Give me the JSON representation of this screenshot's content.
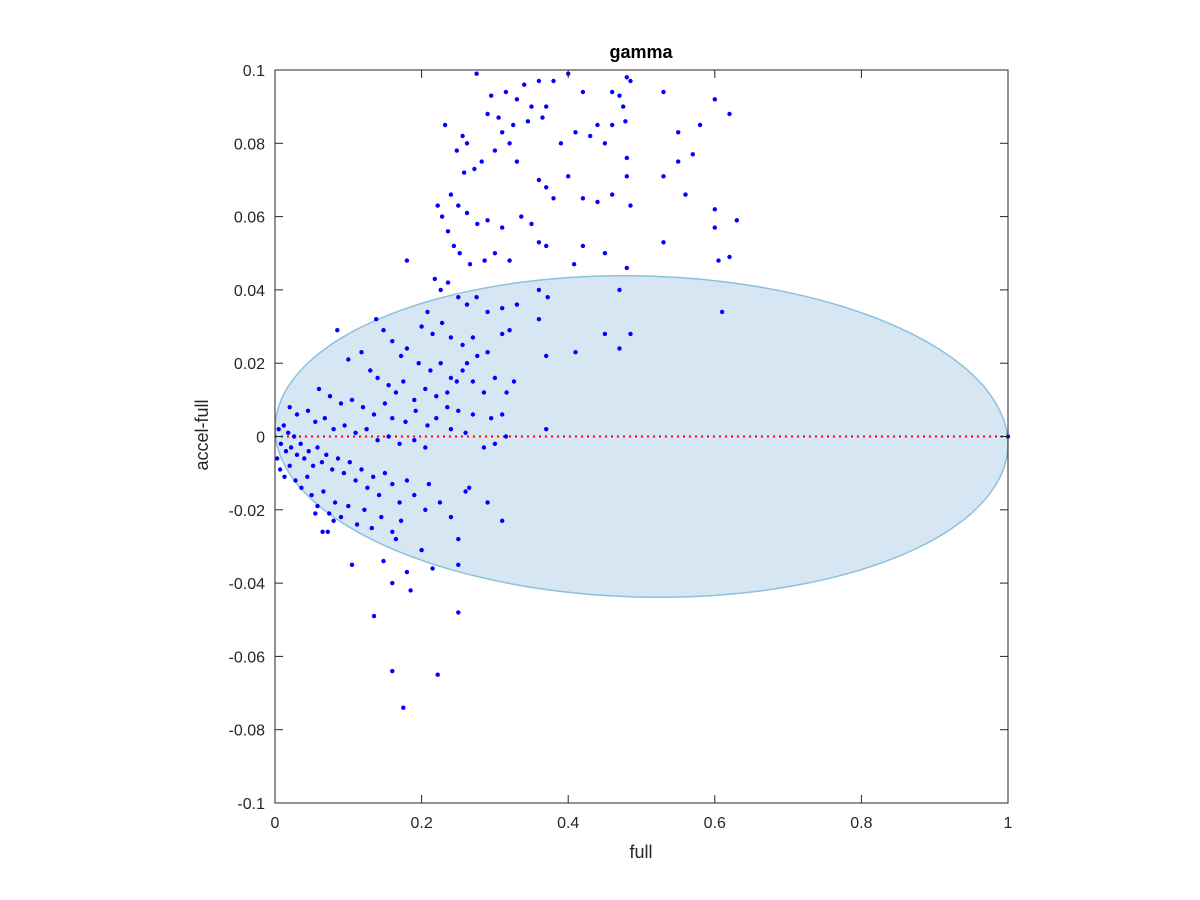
{
  "chart_data": {
    "type": "scatter",
    "title": "gamma",
    "xlabel": "full",
    "ylabel": "accel-full",
    "xlim": [
      0,
      1
    ],
    "ylim": [
      -0.1,
      0.1
    ],
    "xticks": [
      0,
      0.2,
      0.4,
      0.6,
      0.8,
      1
    ],
    "xtick_labels": [
      "0",
      "0.2",
      "0.4",
      "0.6",
      "0.8",
      "1"
    ],
    "yticks": [
      -0.1,
      -0.08,
      -0.06,
      -0.04,
      -0.02,
      0,
      0.02,
      0.04,
      0.06,
      0.08,
      0.1
    ],
    "ytick_labels": [
      "-0.1",
      "-0.08",
      "-0.06",
      "-0.04",
      "-0.02",
      "0",
      "0.02",
      "0.04",
      "0.06",
      "0.08",
      "0.1"
    ],
    "grid": false,
    "colors": {
      "points": "#0000ff",
      "ellipse_fill": "#d6e6f3",
      "ellipse_stroke": "#8ec0de",
      "reference_line": "#ff0000",
      "axes": "#262626"
    },
    "ellipse": {
      "center": [
        0.5,
        0.0
      ],
      "semi_axis_x": 0.5,
      "semi_axis_y": 0.0438,
      "rotation_deg": -1.5
    },
    "reference_line": {
      "y": 0,
      "x_range": [
        0,
        1
      ],
      "style": "dotted"
    },
    "series": [
      {
        "points": [
          [
            0.275,
            0.099
          ],
          [
            0.295,
            0.093
          ],
          [
            0.315,
            0.094
          ],
          [
            0.34,
            0.096
          ],
          [
            0.36,
            0.097
          ],
          [
            0.38,
            0.097
          ],
          [
            0.4,
            0.099
          ],
          [
            0.42,
            0.094
          ],
          [
            0.46,
            0.094
          ],
          [
            0.48,
            0.098
          ],
          [
            0.485,
            0.097
          ],
          [
            0.47,
            0.093
          ],
          [
            0.475,
            0.09
          ],
          [
            0.33,
            0.092
          ],
          [
            0.35,
            0.09
          ],
          [
            0.37,
            0.09
          ],
          [
            0.29,
            0.088
          ],
          [
            0.305,
            0.087
          ],
          [
            0.31,
            0.083
          ],
          [
            0.325,
            0.085
          ],
          [
            0.345,
            0.086
          ],
          [
            0.365,
            0.087
          ],
          [
            0.39,
            0.08
          ],
          [
            0.41,
            0.083
          ],
          [
            0.43,
            0.082
          ],
          [
            0.45,
            0.08
          ],
          [
            0.46,
            0.085
          ],
          [
            0.478,
            0.086
          ],
          [
            0.48,
            0.076
          ],
          [
            0.232,
            0.085
          ],
          [
            0.256,
            0.082
          ],
          [
            0.262,
            0.08
          ],
          [
            0.248,
            0.078
          ],
          [
            0.258,
            0.072
          ],
          [
            0.272,
            0.073
          ],
          [
            0.282,
            0.075
          ],
          [
            0.3,
            0.078
          ],
          [
            0.32,
            0.08
          ],
          [
            0.33,
            0.075
          ],
          [
            0.36,
            0.07
          ],
          [
            0.37,
            0.068
          ],
          [
            0.38,
            0.065
          ],
          [
            0.4,
            0.071
          ],
          [
            0.42,
            0.065
          ],
          [
            0.44,
            0.064
          ],
          [
            0.46,
            0.066
          ],
          [
            0.48,
            0.071
          ],
          [
            0.485,
            0.063
          ],
          [
            0.24,
            0.066
          ],
          [
            0.25,
            0.063
          ],
          [
            0.262,
            0.061
          ],
          [
            0.276,
            0.058
          ],
          [
            0.29,
            0.059
          ],
          [
            0.31,
            0.057
          ],
          [
            0.336,
            0.06
          ],
          [
            0.35,
            0.058
          ],
          [
            0.36,
            0.053
          ],
          [
            0.37,
            0.052
          ],
          [
            0.42,
            0.052
          ],
          [
            0.222,
            0.063
          ],
          [
            0.228,
            0.06
          ],
          [
            0.236,
            0.056
          ],
          [
            0.244,
            0.052
          ],
          [
            0.252,
            0.05
          ],
          [
            0.266,
            0.047
          ],
          [
            0.286,
            0.048
          ],
          [
            0.3,
            0.05
          ],
          [
            0.32,
            0.048
          ],
          [
            0.408,
            0.047
          ],
          [
            0.48,
            0.046
          ],
          [
            0.18,
            0.048
          ],
          [
            0.218,
            0.043
          ],
          [
            0.226,
            0.04
          ],
          [
            0.236,
            0.042
          ],
          [
            0.25,
            0.038
          ],
          [
            0.262,
            0.036
          ],
          [
            0.275,
            0.038
          ],
          [
            0.29,
            0.034
          ],
          [
            0.31,
            0.035
          ],
          [
            0.33,
            0.036
          ],
          [
            0.36,
            0.04
          ],
          [
            0.372,
            0.038
          ],
          [
            0.208,
            0.034
          ],
          [
            0.2,
            0.03
          ],
          [
            0.215,
            0.028
          ],
          [
            0.228,
            0.031
          ],
          [
            0.24,
            0.027
          ],
          [
            0.256,
            0.025
          ],
          [
            0.27,
            0.027
          ],
          [
            0.29,
            0.023
          ],
          [
            0.31,
            0.028
          ],
          [
            0.32,
            0.029
          ],
          [
            0.36,
            0.032
          ],
          [
            0.37,
            0.022
          ],
          [
            0.45,
            0.028
          ],
          [
            0.47,
            0.024
          ],
          [
            0.485,
            0.028
          ],
          [
            0.41,
            0.023
          ],
          [
            0.138,
            0.032
          ],
          [
            0.148,
            0.029
          ],
          [
            0.16,
            0.026
          ],
          [
            0.172,
            0.022
          ],
          [
            0.18,
            0.024
          ],
          [
            0.196,
            0.02
          ],
          [
            0.212,
            0.018
          ],
          [
            0.226,
            0.02
          ],
          [
            0.24,
            0.016
          ],
          [
            0.256,
            0.018
          ],
          [
            0.27,
            0.015
          ],
          [
            0.085,
            0.029
          ],
          [
            0.1,
            0.021
          ],
          [
            0.118,
            0.023
          ],
          [
            0.13,
            0.018
          ],
          [
            0.14,
            0.016
          ],
          [
            0.155,
            0.014
          ],
          [
            0.165,
            0.012
          ],
          [
            0.175,
            0.015
          ],
          [
            0.19,
            0.01
          ],
          [
            0.205,
            0.013
          ],
          [
            0.22,
            0.011
          ],
          [
            0.235,
            0.008
          ],
          [
            0.25,
            0.007
          ],
          [
            0.27,
            0.006
          ],
          [
            0.295,
            0.005
          ],
          [
            0.31,
            0.006
          ],
          [
            0.06,
            0.013
          ],
          [
            0.075,
            0.011
          ],
          [
            0.09,
            0.009
          ],
          [
            0.105,
            0.01
          ],
          [
            0.12,
            0.008
          ],
          [
            0.135,
            0.006
          ],
          [
            0.15,
            0.009
          ],
          [
            0.16,
            0.005
          ],
          [
            0.178,
            0.004
          ],
          [
            0.192,
            0.007
          ],
          [
            0.208,
            0.003
          ],
          [
            0.22,
            0.005
          ],
          [
            0.24,
            0.002
          ],
          [
            0.26,
            0.001
          ],
          [
            0.37,
            0.002
          ],
          [
            0.02,
            0.008
          ],
          [
            0.03,
            0.006
          ],
          [
            0.045,
            0.007
          ],
          [
            0.055,
            0.004
          ],
          [
            0.068,
            0.005
          ],
          [
            0.08,
            0.002
          ],
          [
            0.095,
            0.003
          ],
          [
            0.11,
            0.001
          ],
          [
            0.125,
            0.002
          ],
          [
            0.14,
            -0.001
          ],
          [
            0.155,
            0.0
          ],
          [
            0.17,
            -0.002
          ],
          [
            0.19,
            -0.001
          ],
          [
            0.205,
            -0.003
          ],
          [
            0.005,
            0.002
          ],
          [
            0.008,
            -0.002
          ],
          [
            0.012,
            0.003
          ],
          [
            0.015,
            -0.004
          ],
          [
            0.018,
            0.001
          ],
          [
            0.022,
            -0.003
          ],
          [
            0.026,
            0.0
          ],
          [
            0.03,
            -0.005
          ],
          [
            0.035,
            -0.002
          ],
          [
            0.04,
            -0.006
          ],
          [
            0.046,
            -0.004
          ],
          [
            0.052,
            -0.008
          ],
          [
            0.058,
            -0.003
          ],
          [
            0.064,
            -0.007
          ],
          [
            0.07,
            -0.005
          ],
          [
            0.078,
            -0.009
          ],
          [
            0.086,
            -0.006
          ],
          [
            0.094,
            -0.01
          ],
          [
            0.102,
            -0.007
          ],
          [
            0.11,
            -0.012
          ],
          [
            0.118,
            -0.009
          ],
          [
            0.126,
            -0.014
          ],
          [
            0.134,
            -0.011
          ],
          [
            0.142,
            -0.016
          ],
          [
            0.15,
            -0.01
          ],
          [
            0.16,
            -0.013
          ],
          [
            0.17,
            -0.018
          ],
          [
            0.18,
            -0.012
          ],
          [
            0.19,
            -0.016
          ],
          [
            0.205,
            -0.02
          ],
          [
            0.21,
            -0.013
          ],
          [
            0.225,
            -0.018
          ],
          [
            0.24,
            -0.022
          ],
          [
            0.26,
            -0.015
          ],
          [
            0.003,
            -0.006
          ],
          [
            0.007,
            -0.009
          ],
          [
            0.013,
            -0.011
          ],
          [
            0.02,
            -0.008
          ],
          [
            0.028,
            -0.012
          ],
          [
            0.036,
            -0.014
          ],
          [
            0.044,
            -0.011
          ],
          [
            0.05,
            -0.016
          ],
          [
            0.058,
            -0.019
          ],
          [
            0.066,
            -0.015
          ],
          [
            0.074,
            -0.021
          ],
          [
            0.082,
            -0.018
          ],
          [
            0.09,
            -0.022
          ],
          [
            0.1,
            -0.019
          ],
          [
            0.112,
            -0.024
          ],
          [
            0.122,
            -0.02
          ],
          [
            0.132,
            -0.025
          ],
          [
            0.145,
            -0.022
          ],
          [
            0.16,
            -0.026
          ],
          [
            0.172,
            -0.023
          ],
          [
            0.055,
            -0.021
          ],
          [
            0.065,
            -0.026
          ],
          [
            0.072,
            -0.026
          ],
          [
            0.08,
            -0.023
          ],
          [
            0.105,
            -0.035
          ],
          [
            0.148,
            -0.034
          ],
          [
            0.165,
            -0.028
          ],
          [
            0.18,
            -0.037
          ],
          [
            0.2,
            -0.031
          ],
          [
            0.215,
            -0.036
          ],
          [
            0.25,
            -0.028
          ],
          [
            0.25,
            -0.035
          ],
          [
            0.185,
            -0.042
          ],
          [
            0.16,
            -0.04
          ],
          [
            0.135,
            -0.049
          ],
          [
            0.25,
            -0.048
          ],
          [
            0.16,
            -0.064
          ],
          [
            0.222,
            -0.065
          ],
          [
            0.175,
            -0.074
          ],
          [
            0.265,
            -0.014
          ],
          [
            0.29,
            -0.018
          ],
          [
            0.31,
            -0.023
          ],
          [
            0.285,
            -0.003
          ],
          [
            0.3,
            -0.002
          ],
          [
            0.315,
            0.0
          ],
          [
            0.235,
            0.012
          ],
          [
            0.248,
            0.015
          ],
          [
            0.262,
            0.02
          ],
          [
            0.276,
            0.022
          ],
          [
            0.285,
            0.012
          ],
          [
            0.3,
            0.016
          ],
          [
            0.316,
            0.012
          ],
          [
            0.326,
            0.015
          ],
          [
            0.6,
            0.092
          ],
          [
            0.62,
            0.088
          ],
          [
            0.57,
            0.077
          ],
          [
            0.55,
            0.083
          ],
          [
            0.58,
            0.085
          ],
          [
            0.44,
            0.085
          ],
          [
            0.53,
            0.094
          ],
          [
            0.55,
            0.075
          ],
          [
            0.53,
            0.071
          ],
          [
            0.56,
            0.066
          ],
          [
            0.6,
            0.062
          ],
          [
            0.6,
            0.057
          ],
          [
            0.53,
            0.053
          ],
          [
            0.63,
            0.059
          ],
          [
            0.62,
            0.049
          ],
          [
            0.605,
            0.048
          ],
          [
            0.61,
            0.034
          ],
          [
            0.47,
            0.04
          ],
          [
            0.45,
            0.05
          ],
          [
            1.0,
            0.0
          ]
        ]
      }
    ]
  }
}
